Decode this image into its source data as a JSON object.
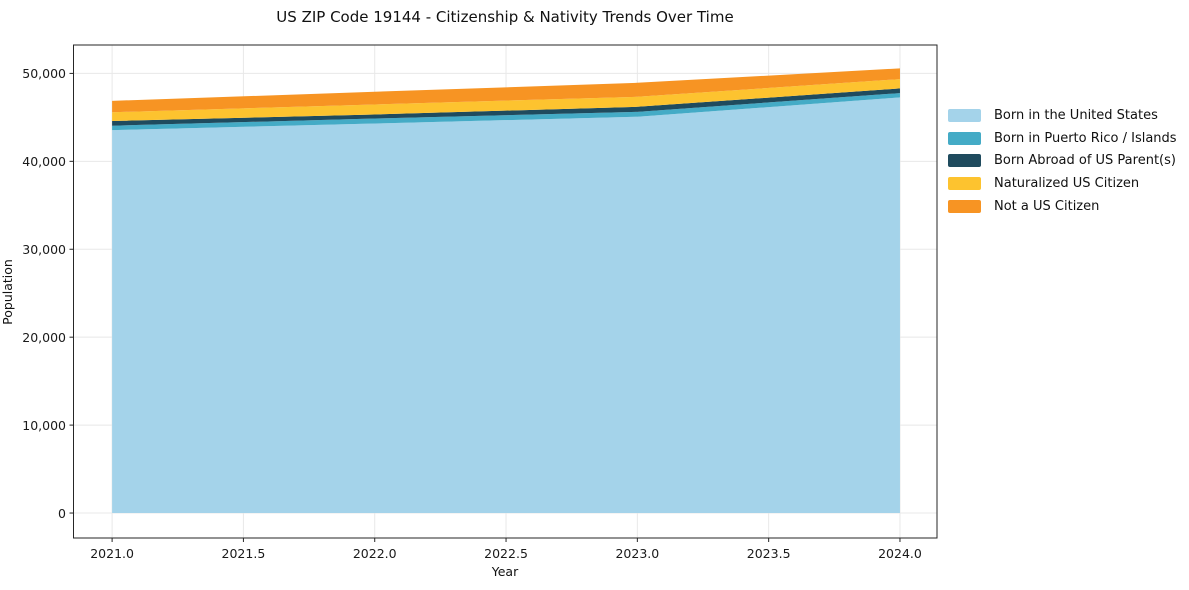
{
  "chart_data": {
    "type": "area",
    "stacked": true,
    "title": "US ZIP Code 19144 - Citizenship & Nativity Trends Over Time",
    "xlabel": "Year",
    "ylabel": "Population",
    "x": [
      2021,
      2022,
      2023,
      2024
    ],
    "series": [
      {
        "name": "Born in the United States",
        "color": "#A4D3EA",
        "values": [
          43550,
          44300,
          45070,
          47270
        ]
      },
      {
        "name": "Born in Puerto Rico / Islands",
        "color": "#44ABC6",
        "values": [
          500,
          570,
          560,
          490
        ]
      },
      {
        "name": "Born Abroad of US Parent(s)",
        "color": "#1F4B5E",
        "values": [
          530,
          460,
          570,
          530
        ]
      },
      {
        "name": "Naturalized US Citizen",
        "color": "#FDC32F",
        "values": [
          1000,
          1140,
          1140,
          1060
        ]
      },
      {
        "name": "Not a US Citizen",
        "color": "#F79423",
        "values": [
          1300,
          1440,
          1590,
          1220
        ]
      }
    ],
    "stack_totals": [
      46880,
      47910,
      48930,
      50570
    ],
    "xlim": [
      2020.853,
      2024.141
    ],
    "ylim": [
      -2840,
      53230
    ],
    "x_ticks": [
      {
        "value": 2021.0,
        "label": "2021.0"
      },
      {
        "value": 2021.5,
        "label": "2021.5"
      },
      {
        "value": 2022.0,
        "label": "2022.0"
      },
      {
        "value": 2022.5,
        "label": "2022.5"
      },
      {
        "value": 2023.0,
        "label": "2023.0"
      },
      {
        "value": 2023.5,
        "label": "2023.5"
      },
      {
        "value": 2024.0,
        "label": "2024.0"
      }
    ],
    "y_ticks": [
      {
        "value": 0,
        "label": "0"
      },
      {
        "value": 10000,
        "label": "10,000"
      },
      {
        "value": 20000,
        "label": "20,000"
      },
      {
        "value": 30000,
        "label": "30,000"
      },
      {
        "value": 40000,
        "label": "40,000"
      },
      {
        "value": 50000,
        "label": "50,000"
      }
    ],
    "grid": true,
    "legend_position": "outside-right",
    "colors": {
      "gridline": "#e8e8e8",
      "spine": "#262626",
      "background": "#ffffff"
    }
  }
}
